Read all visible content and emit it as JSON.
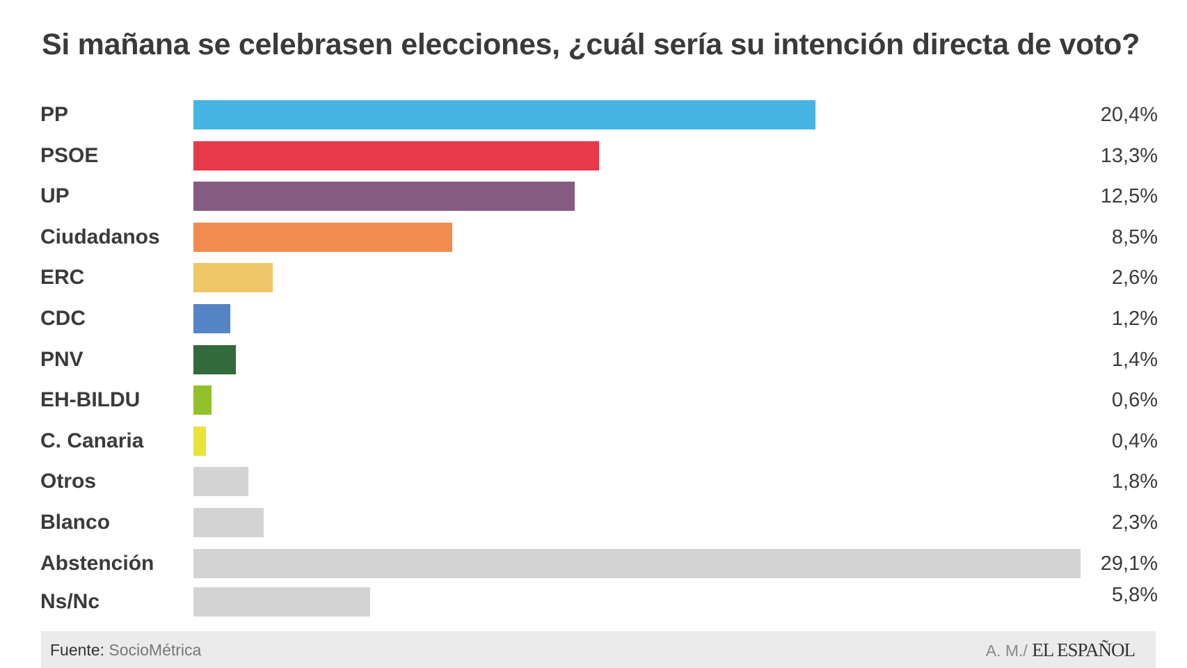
{
  "chart_data": {
    "type": "bar",
    "orientation": "horizontal",
    "title": "Si mañana se celebrasen elecciones, ¿cuál sería su intención directa de voto?",
    "categories": [
      "PP",
      "PSOE",
      "UP",
      "Ciudadanos",
      "ERC",
      "CDC",
      "PNV",
      "EH-BILDU",
      "C. Canaria",
      "Otros",
      "Blanco",
      "Abstención",
      "Ns/Nc"
    ],
    "values": [
      20.4,
      13.3,
      12.5,
      8.5,
      2.6,
      1.2,
      1.4,
      0.6,
      0.4,
      1.8,
      2.3,
      29.1,
      5.8
    ],
    "value_labels": [
      "20,4%",
      "13,3%",
      "12,5%",
      "8,5%",
      "2,6%",
      "1,2%",
      "1,4%",
      "0,6%",
      "0,4%",
      "1,8%",
      "2,3%",
      "29,1%",
      "5,8%"
    ],
    "colors": [
      "#45b4e3",
      "#e8394a",
      "#855b83",
      "#f18c4e",
      "#efc767",
      "#5584c6",
      "#326a3b",
      "#92c12c",
      "#e9e23a",
      "#d3d3d3",
      "#d3d3d3",
      "#d3d3d3",
      "#d3d3d3"
    ],
    "xlim": [
      0,
      29.1
    ],
    "xlabel": "",
    "ylabel": "",
    "grid": false
  },
  "footer": {
    "source_label": "Fuente:",
    "source_name": "SocioMétrica",
    "credit": "A. M./",
    "logo": "EL ESPAÑOL"
  }
}
